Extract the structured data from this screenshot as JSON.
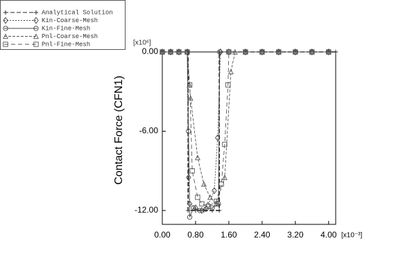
{
  "chart_data": {
    "type": "line",
    "ylabel": "Contact Force (CFN1)",
    "y_multiplier": "[x10⁶]",
    "x_multiplier": "[x10⁻³]",
    "xlim": [
      0,
      4.17
    ],
    "ylim": [
      -13.05,
      0
    ],
    "xticks": [
      {
        "value": 0,
        "label": "0.00"
      },
      {
        "value": 0.8,
        "label": "0.80"
      },
      {
        "value": 1.6,
        "label": "1.60"
      },
      {
        "value": 2.4,
        "label": "2.40"
      },
      {
        "value": 3.2,
        "label": "3.20"
      },
      {
        "value": 4.0,
        "label": "4.00"
      }
    ],
    "yticks": [
      {
        "value": 0,
        "label": "0.00"
      },
      {
        "value": -6,
        "label": "-6.00"
      },
      {
        "value": -12,
        "label": "-12.00"
      }
    ],
    "series": [
      {
        "name": "Analytical Solution",
        "color": "#222222",
        "marker": "plus",
        "dash": "6,3",
        "x": [
          0,
          0.2,
          0.4,
          0.6,
          0.62,
          0.62,
          0.8,
          1.0,
          1.2,
          1.37,
          1.37,
          1.6,
          2.0,
          2.4,
          2.8,
          3.2,
          3.6,
          4.0,
          4.17
        ],
        "values": [
          0,
          0,
          0,
          0,
          0,
          -12,
          -12,
          -12,
          -12,
          -12,
          0,
          0,
          0,
          0,
          0,
          0,
          0,
          0,
          0
        ]
      },
      {
        "name": "Kin-Coarse-Mesh",
        "color": "#444444",
        "marker": "diamond",
        "dash": "2,2",
        "x": [
          0,
          0.2,
          0.4,
          0.6,
          0.63,
          0.66,
          0.8,
          0.95,
          1.1,
          1.25,
          1.33,
          1.4,
          1.6,
          2.0,
          2.4,
          2.8,
          3.2,
          3.6,
          4.0
        ],
        "values": [
          0,
          0,
          0,
          0,
          -9.5,
          -11.5,
          -11.8,
          -12,
          -11.6,
          -10.5,
          -6.5,
          0,
          0,
          0,
          0,
          0,
          0,
          0,
          0
        ]
      },
      {
        "name": "Kin-Fine-Mesh",
        "color": "#444444",
        "marker": "circle",
        "dash": "none",
        "x": [
          0,
          0.2,
          0.4,
          0.6,
          0.63,
          0.66,
          0.75,
          0.9,
          1.05,
          1.2,
          1.35,
          1.38,
          1.6,
          2.0,
          2.4,
          2.8,
          3.2,
          3.6,
          4.0
        ],
        "values": [
          0,
          0,
          0,
          0,
          -6,
          -12.5,
          -11.8,
          -12,
          -11.9,
          -11.8,
          -11.5,
          0,
          0,
          0,
          0,
          0,
          0,
          0,
          0
        ]
      },
      {
        "name": "Pnl-Coarse-Mesh",
        "color": "#555555",
        "marker": "triangle",
        "dash": "4,2",
        "x": [
          0,
          0.2,
          0.4,
          0.6,
          0.65,
          0.68,
          0.85,
          1.0,
          1.15,
          1.3,
          1.5,
          1.65,
          1.75,
          2.0,
          2.4,
          2.8,
          3.2,
          3.6,
          4.0
        ],
        "values": [
          0,
          0,
          0,
          0,
          -2.5,
          -3.5,
          -8,
          -10,
          -11,
          -11.5,
          -9.5,
          -1.5,
          0,
          0,
          0,
          0,
          0,
          0,
          0
        ]
      },
      {
        "name": "Pnl-Fine-Mesh",
        "color": "#555555",
        "marker": "square",
        "dash": "6,4",
        "x": [
          0,
          0.2,
          0.4,
          0.6,
          0.66,
          0.72,
          0.85,
          0.95,
          1.1,
          1.3,
          1.42,
          1.5,
          1.58,
          1.6,
          2.0,
          2.4,
          2.8,
          3.2,
          3.6,
          4.0
        ],
        "values": [
          0,
          0,
          0,
          0,
          -2.5,
          -9,
          -11,
          -11.5,
          -11.7,
          -11.3,
          -10,
          -7,
          -2.5,
          0,
          0,
          0,
          0,
          0,
          0,
          0
        ]
      }
    ]
  }
}
